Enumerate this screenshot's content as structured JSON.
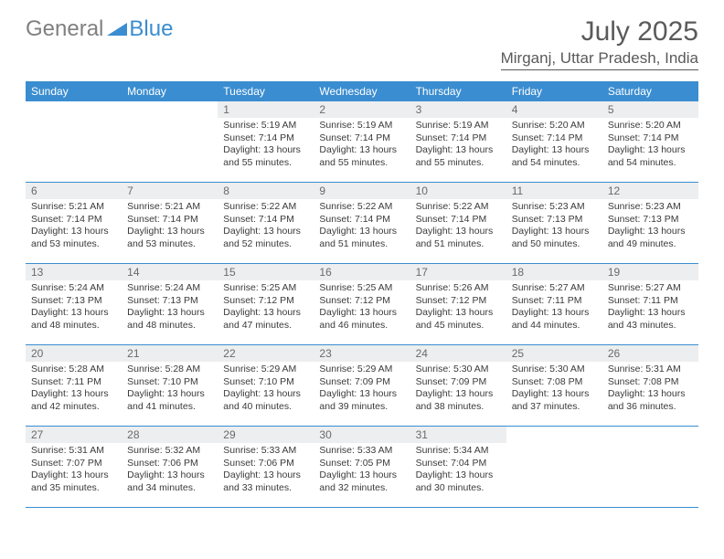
{
  "logo": {
    "general": "General",
    "blue": "Blue"
  },
  "title": "July 2025",
  "location": "Mirganj, Uttar Pradesh, India",
  "colors": {
    "header_bg": "#3a8dd0",
    "daynum_bg": "#eceeef",
    "text": "#3a3a3a",
    "title_text": "#5a5a5a"
  },
  "day_names": [
    "Sunday",
    "Monday",
    "Tuesday",
    "Wednesday",
    "Thursday",
    "Friday",
    "Saturday"
  ],
  "weeks": [
    [
      null,
      null,
      {
        "d": "1",
        "sr": "5:19 AM",
        "ss": "7:14 PM",
        "dl": "13 hours and 55 minutes."
      },
      {
        "d": "2",
        "sr": "5:19 AM",
        "ss": "7:14 PM",
        "dl": "13 hours and 55 minutes."
      },
      {
        "d": "3",
        "sr": "5:19 AM",
        "ss": "7:14 PM",
        "dl": "13 hours and 55 minutes."
      },
      {
        "d": "4",
        "sr": "5:20 AM",
        "ss": "7:14 PM",
        "dl": "13 hours and 54 minutes."
      },
      {
        "d": "5",
        "sr": "5:20 AM",
        "ss": "7:14 PM",
        "dl": "13 hours and 54 minutes."
      }
    ],
    [
      {
        "d": "6",
        "sr": "5:21 AM",
        "ss": "7:14 PM",
        "dl": "13 hours and 53 minutes."
      },
      {
        "d": "7",
        "sr": "5:21 AM",
        "ss": "7:14 PM",
        "dl": "13 hours and 53 minutes."
      },
      {
        "d": "8",
        "sr": "5:22 AM",
        "ss": "7:14 PM",
        "dl": "13 hours and 52 minutes."
      },
      {
        "d": "9",
        "sr": "5:22 AM",
        "ss": "7:14 PM",
        "dl": "13 hours and 51 minutes."
      },
      {
        "d": "10",
        "sr": "5:22 AM",
        "ss": "7:14 PM",
        "dl": "13 hours and 51 minutes."
      },
      {
        "d": "11",
        "sr": "5:23 AM",
        "ss": "7:13 PM",
        "dl": "13 hours and 50 minutes."
      },
      {
        "d": "12",
        "sr": "5:23 AM",
        "ss": "7:13 PM",
        "dl": "13 hours and 49 minutes."
      }
    ],
    [
      {
        "d": "13",
        "sr": "5:24 AM",
        "ss": "7:13 PM",
        "dl": "13 hours and 48 minutes."
      },
      {
        "d": "14",
        "sr": "5:24 AM",
        "ss": "7:13 PM",
        "dl": "13 hours and 48 minutes."
      },
      {
        "d": "15",
        "sr": "5:25 AM",
        "ss": "7:12 PM",
        "dl": "13 hours and 47 minutes."
      },
      {
        "d": "16",
        "sr": "5:25 AM",
        "ss": "7:12 PM",
        "dl": "13 hours and 46 minutes."
      },
      {
        "d": "17",
        "sr": "5:26 AM",
        "ss": "7:12 PM",
        "dl": "13 hours and 45 minutes."
      },
      {
        "d": "18",
        "sr": "5:27 AM",
        "ss": "7:11 PM",
        "dl": "13 hours and 44 minutes."
      },
      {
        "d": "19",
        "sr": "5:27 AM",
        "ss": "7:11 PM",
        "dl": "13 hours and 43 minutes."
      }
    ],
    [
      {
        "d": "20",
        "sr": "5:28 AM",
        "ss": "7:11 PM",
        "dl": "13 hours and 42 minutes."
      },
      {
        "d": "21",
        "sr": "5:28 AM",
        "ss": "7:10 PM",
        "dl": "13 hours and 41 minutes."
      },
      {
        "d": "22",
        "sr": "5:29 AM",
        "ss": "7:10 PM",
        "dl": "13 hours and 40 minutes."
      },
      {
        "d": "23",
        "sr": "5:29 AM",
        "ss": "7:09 PM",
        "dl": "13 hours and 39 minutes."
      },
      {
        "d": "24",
        "sr": "5:30 AM",
        "ss": "7:09 PM",
        "dl": "13 hours and 38 minutes."
      },
      {
        "d": "25",
        "sr": "5:30 AM",
        "ss": "7:08 PM",
        "dl": "13 hours and 37 minutes."
      },
      {
        "d": "26",
        "sr": "5:31 AM",
        "ss": "7:08 PM",
        "dl": "13 hours and 36 minutes."
      }
    ],
    [
      {
        "d": "27",
        "sr": "5:31 AM",
        "ss": "7:07 PM",
        "dl": "13 hours and 35 minutes."
      },
      {
        "d": "28",
        "sr": "5:32 AM",
        "ss": "7:06 PM",
        "dl": "13 hours and 34 minutes."
      },
      {
        "d": "29",
        "sr": "5:33 AM",
        "ss": "7:06 PM",
        "dl": "13 hours and 33 minutes."
      },
      {
        "d": "30",
        "sr": "5:33 AM",
        "ss": "7:05 PM",
        "dl": "13 hours and 32 minutes."
      },
      {
        "d": "31",
        "sr": "5:34 AM",
        "ss": "7:04 PM",
        "dl": "13 hours and 30 minutes."
      },
      null,
      null
    ]
  ],
  "labels": {
    "sunrise": "Sunrise: ",
    "sunset": "Sunset: ",
    "daylight": "Daylight: "
  }
}
